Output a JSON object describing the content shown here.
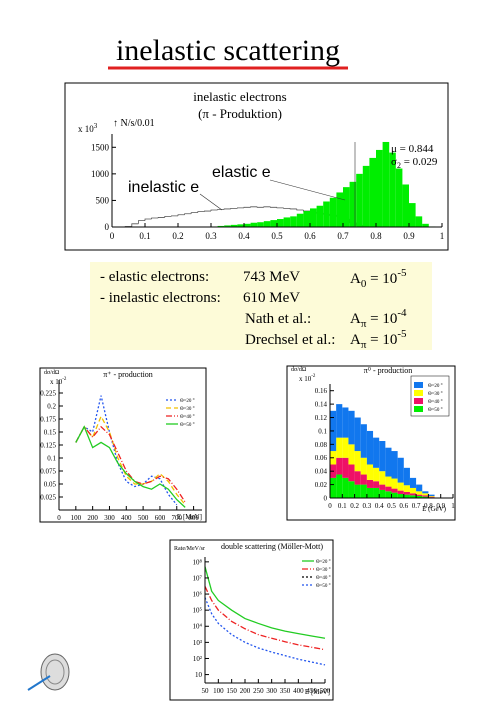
{
  "title": "inelastic scattering",
  "notes": [
    {
      "label": "- elastic electrons:",
      "energy": "743 MeV",
      "asym": {
        "base": "A",
        "sub": "0",
        "eq": " = 10",
        "exp": "-5"
      }
    },
    {
      "label": "- inelastic electrons:",
      "energy": "610 MeV"
    },
    {
      "label": "Nath et al.:",
      "asym": {
        "base": "A",
        "sub": "π",
        "eq": " = 10",
        "exp": "-4"
      }
    },
    {
      "label": "Drechsel et al.:",
      "asym": {
        "base": "A",
        "sub": "π",
        "eq": " = 10",
        "exp": "-5"
      }
    }
  ],
  "chart_data": [
    {
      "type": "histogram",
      "title": "inelastic electrons",
      "subtitle": "(π - Produktion)",
      "ylabel": "↑ N/s/0.01",
      "yscale": "x 10",
      "yscale_exp": "3",
      "stats": [
        {
          "symbol": "μ",
          "value": " = 0.844"
        },
        {
          "symbol": "σ",
          "sub": "2",
          "value": " = 0.029"
        }
      ],
      "bins": [
        0,
        0.02,
        0.04,
        0.06,
        0.08,
        0.1,
        0.12,
        0.14,
        0.16,
        0.18,
        0.2,
        0.22,
        0.24,
        0.26,
        0.28,
        0.3,
        0.32,
        0.34,
        0.36,
        0.38,
        0.4,
        0.42,
        0.44,
        0.46,
        0.48,
        0.5,
        0.52,
        0.54,
        0.56,
        0.58,
        0.6,
        0.62,
        0.64,
        0.66,
        0.68,
        0.7,
        0.72,
        0.74,
        0.76,
        0.78,
        0.8,
        0.82,
        0.84,
        0.86,
        0.88,
        0.9,
        0.92,
        0.94,
        0.96,
        0.98,
        1
      ],
      "series": [
        {
          "name": "inelastic e",
          "color": "#555555",
          "filled": false,
          "values": [
            0,
            0,
            10,
            60,
            120,
            150,
            170,
            180,
            200,
            210,
            230,
            250,
            270,
            290,
            300,
            320,
            330,
            340,
            350,
            360,
            370,
            380,
            370,
            380,
            370,
            360,
            350,
            340,
            320,
            300,
            280,
            260,
            240,
            220,
            200,
            150,
            80,
            30,
            0,
            0,
            0,
            0,
            0,
            0,
            0,
            0,
            0,
            0,
            0,
            0
          ]
        },
        {
          "name": "elastic e",
          "color": "#00ee00",
          "filled": true,
          "values": [
            0,
            0,
            0,
            0,
            0,
            0,
            0,
            0,
            0,
            0,
            0,
            0,
            0,
            0,
            0,
            10,
            20,
            30,
            40,
            50,
            60,
            80,
            90,
            110,
            130,
            150,
            180,
            200,
            250,
            300,
            350,
            400,
            480,
            550,
            650,
            750,
            850,
            1000,
            1150,
            1300,
            1450,
            1600,
            1400,
            1100,
            800,
            450,
            200,
            60,
            10,
            0
          ]
        }
      ],
      "xlim": [
        0,
        1
      ],
      "xticks": [
        0,
        0.1,
        0.2,
        0.3,
        0.4,
        0.5,
        0.6,
        0.7,
        0.8,
        0.9,
        1
      ],
      "ylim": [
        0,
        1750
      ],
      "yticks": [
        0,
        500,
        1000,
        1500
      ]
    },
    {
      "type": "line",
      "title": "π⁺ - production",
      "ylabel": "dσ/dΩ",
      "yscale": "x 10",
      "yscale_exp": "-2",
      "xlabel": "E [MeV]",
      "legend": "upper right",
      "x": [
        100,
        150,
        200,
        250,
        300,
        350,
        400,
        450,
        500,
        550,
        600,
        650,
        700,
        750,
        800
      ],
      "series": [
        {
          "name": "Θ=20 °",
          "color": "#2255ee",
          "dash": "dotted",
          "values": [
            0.13,
            0.16,
            0.15,
            0.22,
            0.15,
            0.09,
            0.055,
            0.045,
            0.05,
            0.065,
            0.06,
            0.03,
            0.01,
            null,
            null
          ]
        },
        {
          "name": "Θ=30 °",
          "color": "#f0c000",
          "dash": "dashed",
          "values": [
            0.13,
            0.16,
            0.14,
            0.18,
            0.15,
            0.1,
            0.065,
            0.05,
            0.05,
            0.055,
            0.07,
            0.055,
            0.03,
            0.01,
            null
          ]
        },
        {
          "name": "Θ=40 °",
          "color": "#ee2222",
          "dash": "dashdot",
          "values": [
            0.13,
            0.16,
            0.14,
            0.16,
            0.145,
            0.11,
            0.075,
            0.055,
            0.05,
            0.055,
            0.065,
            0.06,
            0.04,
            0.015,
            null
          ]
        },
        {
          "name": "Θ=50 °",
          "color": "#22cc22",
          "dash": "solid",
          "values": [
            0.13,
            0.16,
            0.12,
            0.13,
            0.12,
            0.09,
            0.07,
            0.055,
            0.045,
            0.04,
            0.05,
            0.04,
            0.02,
            0.005,
            null
          ]
        }
      ],
      "xlim": [
        0,
        850
      ],
      "xticks": [
        0,
        100,
        200,
        300,
        400,
        500,
        600,
        700,
        800
      ],
      "ylim": [
        0,
        0.25
      ],
      "yticks": [
        0.025,
        0.05,
        0.075,
        0.1,
        0.125,
        0.15,
        0.175,
        0.2,
        0.225
      ]
    },
    {
      "type": "histogram",
      "stacked": true,
      "title": "π⁰ - production",
      "ylabel": "dσ/dΩ",
      "yscale": "x 10",
      "yscale_exp": "-2",
      "xlabel": "E (GeV)",
      "legend": "upper right",
      "bins": [
        0,
        0.05,
        0.1,
        0.15,
        0.2,
        0.25,
        0.3,
        0.35,
        0.4,
        0.45,
        0.5,
        0.55,
        0.6,
        0.65,
        0.7,
        0.75,
        0.8,
        0.85,
        0.9
      ],
      "series": [
        {
          "name": "Θ=20 °",
          "color": "#1177ee",
          "values": [
            0.06,
            0.05,
            0.045,
            0.05,
            0.05,
            0.05,
            0.05,
            0.045,
            0.045,
            0.043,
            0.041,
            0.037,
            0.026,
            0.015,
            0.01,
            0.003,
            0.002,
            0
          ]
        },
        {
          "name": "Θ=30 °",
          "color": "#ffff00",
          "values": [
            0.02,
            0.03,
            0.03,
            0.03,
            0.03,
            0.025,
            0.023,
            0.02,
            0.02,
            0.015,
            0.015,
            0.012,
            0.01,
            0.008,
            0.005,
            0.003,
            0.001,
            0
          ]
        },
        {
          "name": "Θ=40 °",
          "color": "#ee1166",
          "values": [
            0.02,
            0.025,
            0.03,
            0.025,
            0.02,
            0.015,
            0.012,
            0.01,
            0.008,
            0.007,
            0.006,
            0.005,
            0.004,
            0.003,
            0.002,
            0.002,
            0.001,
            0
          ]
        },
        {
          "name": "Θ=50 °",
          "color": "#00ee00",
          "values": [
            0.03,
            0.035,
            0.03,
            0.025,
            0.02,
            0.02,
            0.015,
            0.015,
            0.012,
            0.01,
            0.008,
            0.006,
            0.005,
            0.004,
            0.003,
            0.002,
            0.001,
            0
          ]
        }
      ],
      "xlim": [
        0,
        1
      ],
      "xticks": [
        0,
        0.1,
        0.2,
        0.3,
        0.4,
        0.5,
        0.6,
        0.7,
        0.8,
        0.9,
        1
      ],
      "ylim": [
        0,
        0.17
      ],
      "yticks": [
        0,
        0.02,
        0.04,
        0.06,
        0.08,
        0.1,
        0.12,
        0.14,
        0.16
      ]
    },
    {
      "type": "line",
      "log_y": true,
      "title": "double scattering  (Möller-Mott)",
      "ylabel": "Rate/MeV/sr",
      "xlabel": "E [MeV]",
      "legend": "upper right",
      "x": [
        50,
        75,
        100,
        150,
        200,
        250,
        300,
        350,
        400,
        450,
        500
      ],
      "series": [
        {
          "name": "Θ=20 °",
          "color": "#22cc22",
          "dash": "solid",
          "values": [
            50000000,
            1500000,
            400000,
            100000,
            30000,
            15000,
            8000,
            5000,
            3500,
            2500,
            1800
          ]
        },
        {
          "name": "Θ=30 °",
          "color": "#ee2222",
          "dash": "dashdot",
          "values": [
            3000000,
            400000,
            100000,
            20000,
            7000,
            3000,
            1800,
            1100,
            700,
            500,
            350
          ]
        },
        {
          "name": "Θ=40 °",
          "color": "#000000",
          "dash": "dotted",
          "values": [
            null,
            null,
            null,
            null,
            null,
            null,
            null,
            null,
            null,
            null,
            null
          ]
        },
        {
          "name": "Θ=50 °",
          "color": "#2255ee",
          "dash": "dotted",
          "values": [
            600000,
            60000,
            15000,
            3000,
            1000,
            450,
            250,
            150,
            90,
            60,
            40
          ]
        }
      ],
      "xlim": [
        50,
        500
      ],
      "xticks": [
        50,
        100,
        150,
        200,
        250,
        300,
        350,
        400,
        450,
        500
      ],
      "ylim": [
        3,
        200000000
      ],
      "yticks": [
        10,
        {
          "value": 100,
          "label": "10²"
        },
        {
          "value": 1000,
          "label": "10³"
        },
        {
          "value": 10000,
          "label": "10⁴"
        },
        {
          "value": 100000,
          "label": "10⁵"
        },
        {
          "value": 1000000,
          "label": "10⁶"
        },
        {
          "value": 10000000,
          "label": "10⁷"
        },
        {
          "value": 100000000,
          "label": "10⁸"
        }
      ]
    }
  ]
}
